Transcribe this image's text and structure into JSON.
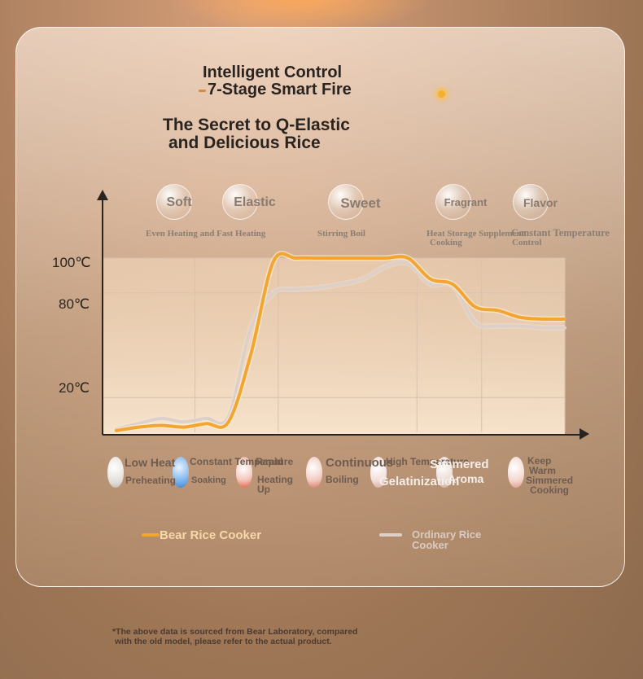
{
  "header": {
    "line1": "Intelligent Control",
    "line2": "7-Stage Smart Fire",
    "line3": "The Secret to Q-Elastic",
    "line4": "and Delicious Rice"
  },
  "bubbles": [
    "Soft",
    "Elastic",
    "Sweet",
    "Fragrant",
    "Flavor"
  ],
  "stage_captions": {
    "even": "Even Heating and Fast Heating",
    "stir": "Stirring Boil",
    "heat1": "Heat Storage Supplement",
    "heat2": "Cooking",
    "const1": "Constant Temperature",
    "const2": "Control"
  },
  "process_labels": {
    "low_heat": "Low Heat",
    "preheating": "Preheating",
    "constant": "Constant Temperature",
    "soaking": "Soaking",
    "rapid": "Rapid",
    "heating1": "Heating",
    "heating2": "Up",
    "continuous": "Continuous",
    "boiling": "Boiling",
    "high_temp": "High Temperature",
    "gelatinization": "Gelatinization",
    "simmered": "Simmered",
    "aroma": "Aroma",
    "keep1": "Keep",
    "keep2": "Warm",
    "simmered2": "Simmered",
    "cooking": "Cooking"
  },
  "footnote": {
    "line1": "*The above data is sourced from Bear Laboratory, compared",
    "line2": "with the old model, please refer to the actual product."
  },
  "colors": {
    "bear": "#f2a531",
    "ordinary": "#ddd0c8",
    "axis": "#2a2420"
  },
  "chart_data": {
    "type": "line",
    "x": [
      0,
      0.05,
      0.1,
      0.15,
      0.2,
      0.25,
      0.3,
      0.35,
      0.4,
      0.45,
      0.5,
      0.55,
      0.6,
      0.65,
      0.7,
      0.75,
      0.8,
      0.85,
      0.9,
      0.95,
      1.0
    ],
    "y_ticks": [
      20,
      80,
      100
    ],
    "y_tick_labels": [
      "20℃",
      "80℃",
      "100℃"
    ],
    "ylim": [
      0,
      105
    ],
    "series": [
      {
        "name": "Bear Rice Cooker",
        "values": [
          1,
          3,
          4,
          3,
          5,
          6,
          45,
          98,
          100,
          100,
          100,
          100,
          100,
          100,
          88,
          85,
          72,
          70,
          66,
          65,
          65
        ]
      },
      {
        "name": "Ordinary Rice Cooker",
        "values": [
          2,
          5,
          8,
          6,
          8,
          9,
          60,
          80,
          82,
          83,
          85,
          88,
          95,
          97,
          85,
          84,
          63,
          61,
          61,
          60,
          60
        ]
      }
    ],
    "legend": "bottom",
    "grid": true
  }
}
